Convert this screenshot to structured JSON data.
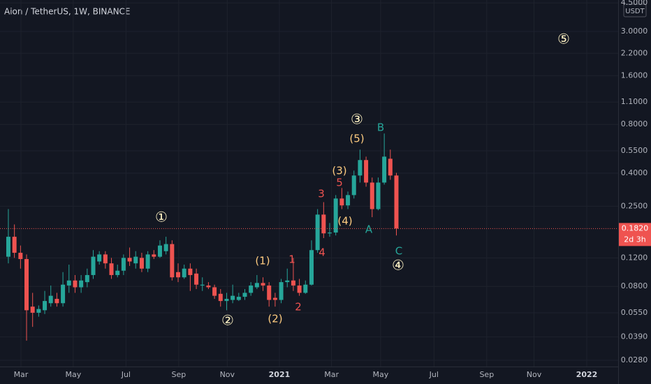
{
  "chart_data": {
    "type": "candlestick",
    "title": "Aion / TetherUS, 1W, BINANCE",
    "unit_label": "USDT",
    "log_scale": true,
    "grid": true,
    "up_color": "#26a69a",
    "down_color": "#ef5350",
    "x": [
      0,
      1,
      2,
      3,
      4,
      5,
      6,
      7,
      8,
      9,
      10,
      11,
      12,
      13,
      14,
      15,
      16,
      17,
      18,
      19,
      20,
      21,
      22,
      23,
      24,
      25,
      26,
      27,
      28,
      29,
      30,
      31,
      32,
      33,
      34,
      35,
      36,
      37,
      38,
      39,
      40,
      41,
      42,
      43,
      44,
      45,
      46,
      47,
      48,
      49,
      50,
      51,
      52,
      53,
      54,
      55,
      56,
      57,
      58,
      59,
      60,
      61,
      62,
      63,
      64
    ],
    "open": [
      0.122,
      0.162,
      0.129,
      0.118,
      0.06,
      0.055,
      0.057,
      0.063,
      0.067,
      0.063,
      0.081,
      0.087,
      0.079,
      0.085,
      0.094,
      0.114,
      0.126,
      0.111,
      0.094,
      0.1,
      0.12,
      0.111,
      0.12,
      0.103,
      0.126,
      0.122,
      0.132,
      0.146,
      0.098,
      0.091,
      0.103,
      0.096,
      0.081,
      0.081,
      0.079,
      0.072,
      0.065,
      0.066,
      0.066,
      0.069,
      0.073,
      0.079,
      0.084,
      0.081,
      0.068,
      0.066,
      0.085,
      0.087,
      0.081,
      0.073,
      0.082,
      0.134,
      0.222,
      0.17,
      0.172,
      0.279,
      0.253,
      0.293,
      0.387,
      0.482,
      0.35,
      0.24,
      0.35,
      0.491,
      0.387
    ],
    "high": [
      0.24,
      0.193,
      0.143,
      0.126,
      0.073,
      0.061,
      0.075,
      0.081,
      0.073,
      0.098,
      0.109,
      0.094,
      0.094,
      0.103,
      0.134,
      0.132,
      0.132,
      0.12,
      0.109,
      0.126,
      0.139,
      0.132,
      0.129,
      0.132,
      0.134,
      0.154,
      0.162,
      0.154,
      0.111,
      0.109,
      0.111,
      0.103,
      0.091,
      0.085,
      0.082,
      0.077,
      0.073,
      0.082,
      0.073,
      0.077,
      0.085,
      0.094,
      0.091,
      0.085,
      0.073,
      0.089,
      0.103,
      0.12,
      0.089,
      0.087,
      0.154,
      0.24,
      0.265,
      0.197,
      0.293,
      0.324,
      0.308,
      0.415,
      0.559,
      0.506,
      0.376,
      0.376,
      0.703,
      0.559,
      0.402
    ],
    "low": [
      0.111,
      0.12,
      0.103,
      0.037,
      0.045,
      0.052,
      0.054,
      0.06,
      0.06,
      0.06,
      0.073,
      0.073,
      0.073,
      0.079,
      0.089,
      0.109,
      0.103,
      0.089,
      0.091,
      0.094,
      0.107,
      0.103,
      0.098,
      0.098,
      0.118,
      0.12,
      0.126,
      0.087,
      0.085,
      0.089,
      0.075,
      0.077,
      0.075,
      0.077,
      0.067,
      0.06,
      0.057,
      0.063,
      0.065,
      0.066,
      0.07,
      0.077,
      0.075,
      0.06,
      0.06,
      0.063,
      0.079,
      0.075,
      0.07,
      0.072,
      0.081,
      0.129,
      0.159,
      0.162,
      0.165,
      0.24,
      0.24,
      0.279,
      0.35,
      0.33,
      0.214,
      0.236,
      0.34,
      0.364,
      0.165
    ],
    "close": [
      0.162,
      0.129,
      0.118,
      0.057,
      0.055,
      0.058,
      0.065,
      0.07,
      0.063,
      0.082,
      0.087,
      0.079,
      0.087,
      0.094,
      0.122,
      0.126,
      0.111,
      0.094,
      0.1,
      0.12,
      0.114,
      0.122,
      0.103,
      0.126,
      0.122,
      0.143,
      0.146,
      0.091,
      0.091,
      0.103,
      0.094,
      0.082,
      0.082,
      0.079,
      0.07,
      0.065,
      0.067,
      0.07,
      0.069,
      0.073,
      0.081,
      0.084,
      0.081,
      0.066,
      0.066,
      0.085,
      0.087,
      0.081,
      0.073,
      0.082,
      0.134,
      0.222,
      0.17,
      0.172,
      0.279,
      0.253,
      0.293,
      0.387,
      0.482,
      0.35,
      0.24,
      0.35,
      0.506,
      0.387,
      0.182
    ],
    "last_price": {
      "value": 0.182,
      "label": "0.1820"
    },
    "countdown": "2d 3h",
    "xlim": [
      -1.38,
      100.58
    ],
    "xticks": [
      {
        "value": 2.07,
        "label": "Mar"
      },
      {
        "value": 10.7,
        "label": "May"
      },
      {
        "value": 19.4,
        "label": "Jul"
      },
      {
        "value": 28.1,
        "label": "Sep"
      },
      {
        "value": 36.1,
        "label": "Nov"
      },
      {
        "value": 44.7,
        "label": "2021"
      },
      {
        "value": 53.3,
        "label": "Mar"
      },
      {
        "value": 61.4,
        "label": "May"
      },
      {
        "value": 70.2,
        "label": "Jul"
      },
      {
        "value": 78.9,
        "label": "Sep"
      },
      {
        "value": 86.7,
        "label": "Nov"
      },
      {
        "value": 95.4,
        "label": "2022"
      }
    ],
    "ylim": [
      0.0256,
      4.69
    ],
    "yticks": [
      {
        "value": 4.5,
        "label": "4.5000"
      },
      {
        "value": 3,
        "label": "3.0000"
      },
      {
        "value": 2.2,
        "label": "2.2000"
      },
      {
        "value": 1.6,
        "label": "1.6000"
      },
      {
        "value": 1.1,
        "label": "1.1000"
      },
      {
        "value": 0.8,
        "label": "0.8000"
      },
      {
        "value": 0.55,
        "label": "0.5500"
      },
      {
        "value": 0.4,
        "label": "0.4000"
      },
      {
        "value": 0.25,
        "label": "0.2500"
      },
      {
        "value": 0.12,
        "label": "0.1200"
      },
      {
        "value": 0.08,
        "label": "0.0800"
      },
      {
        "value": 0.055,
        "label": "0.0550"
      },
      {
        "value": 0.039,
        "label": "0.0390"
      },
      {
        "value": 0.028,
        "label": "0.0280"
      }
    ],
    "annotations": [
      {
        "text": "①",
        "color": "#fff3c4"
      },
      {
        "text": "②",
        "color": "#fff3c4"
      },
      {
        "text": "③",
        "color": "#fff3c4"
      },
      {
        "text": "④",
        "color": "#fff3c4"
      },
      {
        "text": "⑤",
        "color": "#fff3c4"
      },
      {
        "text": "(1)",
        "color": "#ffcc80"
      },
      {
        "text": "(2)",
        "color": "#ffcc80"
      },
      {
        "text": "(3)",
        "color": "#ffcc80"
      },
      {
        "text": "(4)",
        "color": "#ffcc80"
      },
      {
        "text": "(5)",
        "color": "#ffcc80"
      },
      {
        "text": "1",
        "color": "#ef5350"
      },
      {
        "text": "2",
        "color": "#ef5350"
      },
      {
        "text": "3",
        "color": "#ef5350"
      },
      {
        "text": "4",
        "color": "#ef5350"
      },
      {
        "text": "5",
        "color": "#ef5350"
      },
      {
        "text": "A",
        "color": "#26a69a"
      },
      {
        "text": "B",
        "color": "#26a69a"
      },
      {
        "text": "C",
        "color": "#26a69a"
      }
    ]
  }
}
